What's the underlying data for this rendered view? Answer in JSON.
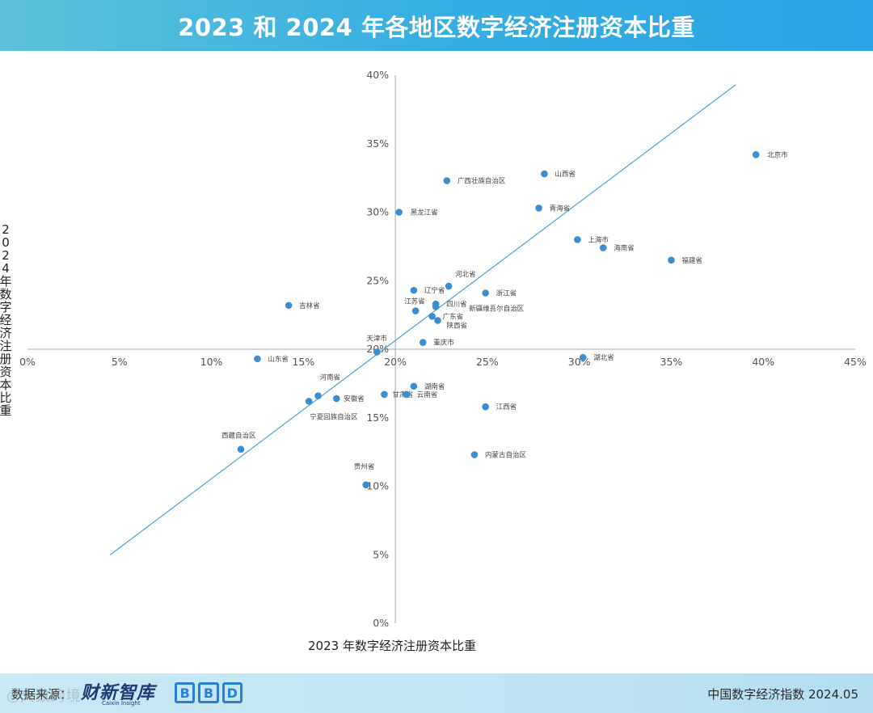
{
  "header": {
    "title": "2023 和 2024 年各地区数字经济注册资本比重"
  },
  "footer": {
    "source_label": "数据来源：",
    "logo1_text": "财新智库",
    "logo1_sub": "Caixin Insight",
    "logo2_letters": [
      "B",
      "B",
      "D"
    ],
    "right_text": "中国数字经济指数 2024.05",
    "watermark": "◎大数跨境"
  },
  "colors": {
    "point": "#3a8fd3",
    "line": "#4aa3d8",
    "axis": "#a8a8a8",
    "tick_text": "#555555",
    "label_text": "#444444"
  },
  "chart_data": {
    "type": "scatter",
    "title": "2023 和 2024 年各地区数字经济注册资本比重",
    "xlabel": "2023 年数字经济注册资本比重",
    "ylabel": "2024 年数字经济注册资本比重",
    "x_range": [
      0,
      45
    ],
    "y_range": [
      0,
      40
    ],
    "x_ticks": [
      "0%",
      "5%",
      "10%",
      "15%",
      "20%",
      "25%",
      "30%",
      "35%",
      "40%",
      "45%"
    ],
    "y_ticks": [
      "0%",
      "5%",
      "10%",
      "15%",
      "20%",
      "25%",
      "30%",
      "35%",
      "40%"
    ],
    "axis_crossing": {
      "x": 20,
      "y": 20
    },
    "grid": false,
    "trend_line": {
      "x": [
        4.5,
        38.5
      ],
      "y": [
        5,
        39.3
      ]
    },
    "points": [
      {
        "name": "北京市",
        "x": 39.6,
        "y": 34.2
      },
      {
        "name": "山西省",
        "x": 28.1,
        "y": 32.8
      },
      {
        "name": "广西壮族自治区",
        "x": 22.8,
        "y": 32.3
      },
      {
        "name": "黑龙江省",
        "x": 20.2,
        "y": 30.0
      },
      {
        "name": "青海省",
        "x": 27.8,
        "y": 30.3
      },
      {
        "name": "上海市",
        "x": 29.9,
        "y": 28.0
      },
      {
        "name": "海南省",
        "x": 31.3,
        "y": 27.4
      },
      {
        "name": "福建省",
        "x": 35.0,
        "y": 26.5
      },
      {
        "name": "河北省",
        "x": 22.9,
        "y": 24.6
      },
      {
        "name": "辽宁省",
        "x": 21.0,
        "y": 24.3
      },
      {
        "name": "浙江省",
        "x": 24.9,
        "y": 24.1
      },
      {
        "name": "吉林省",
        "x": 14.2,
        "y": 23.2
      },
      {
        "name": "江苏省",
        "x": 21.1,
        "y": 22.8
      },
      {
        "name": "四川省",
        "x": 22.2,
        "y": 23.3
      },
      {
        "name": "新疆维吾尔自治区",
        "x": 22.2,
        "y": 23.1
      },
      {
        "name": "广东省",
        "x": 22.0,
        "y": 22.4
      },
      {
        "name": "陕西省",
        "x": 22.3,
        "y": 22.1
      },
      {
        "name": "天津市",
        "x": 19.0,
        "y": 19.8
      },
      {
        "name": "重庆市",
        "x": 21.5,
        "y": 20.5
      },
      {
        "name": "湖北省",
        "x": 30.2,
        "y": 19.4
      },
      {
        "name": "山东省",
        "x": 12.5,
        "y": 19.3
      },
      {
        "name": "河南省",
        "x": 15.8,
        "y": 16.6
      },
      {
        "name": "安徽省",
        "x": 16.8,
        "y": 16.4
      },
      {
        "name": "宁夏回族自治区",
        "x": 15.3,
        "y": 16.2
      },
      {
        "name": "甘肃省",
        "x": 19.4,
        "y": 16.7
      },
      {
        "name": "云南省",
        "x": 20.6,
        "y": 16.7
      },
      {
        "name": "湖南省",
        "x": 21.0,
        "y": 17.3
      },
      {
        "name": "江西省",
        "x": 24.9,
        "y": 15.8
      },
      {
        "name": "西藏自治区",
        "x": 11.6,
        "y": 12.7
      },
      {
        "name": "内蒙古自治区",
        "x": 24.3,
        "y": 12.3
      },
      {
        "name": "贵州省",
        "x": 18.4,
        "y": 10.1
      }
    ]
  }
}
